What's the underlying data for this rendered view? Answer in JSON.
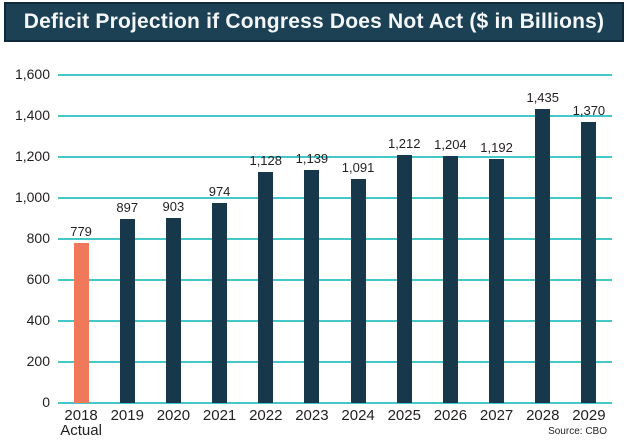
{
  "chart_data": {
    "type": "bar",
    "title": "Deficit Projection if Congress Does Not Act ($ in Billions)",
    "categories": [
      "2018\nActual",
      "2019",
      "2020",
      "2021",
      "2022",
      "2023",
      "2024",
      "2025",
      "2026",
      "2027",
      "2028",
      "2029"
    ],
    "values": [
      779,
      897,
      903,
      974,
      1128,
      1139,
      1091,
      1212,
      1204,
      1192,
      1435,
      1370
    ],
    "value_labels": [
      "779",
      "897",
      "903",
      "974",
      "1,128",
      "1,139",
      "1,091",
      "1,212",
      "1,204",
      "1,192",
      "1,435",
      "1,370"
    ],
    "ylim": [
      0,
      1600
    ],
    "ytick_interval": 200,
    "yticks": [
      "0",
      "200",
      "400",
      "600",
      "800",
      "1,000",
      "1,200",
      "1,400",
      "1,600"
    ],
    "grid": true,
    "legend": "none",
    "highlight_index": 0,
    "source": "Source: CBO",
    "colors": {
      "bar": "#16384a",
      "highlight_bar": "#f0795b",
      "gridline": "#44c7c8",
      "title_bg": "#1c4155",
      "title_border": "#10293a",
      "title_text": "#f4f7f9",
      "label_text": "#231f20"
    }
  }
}
